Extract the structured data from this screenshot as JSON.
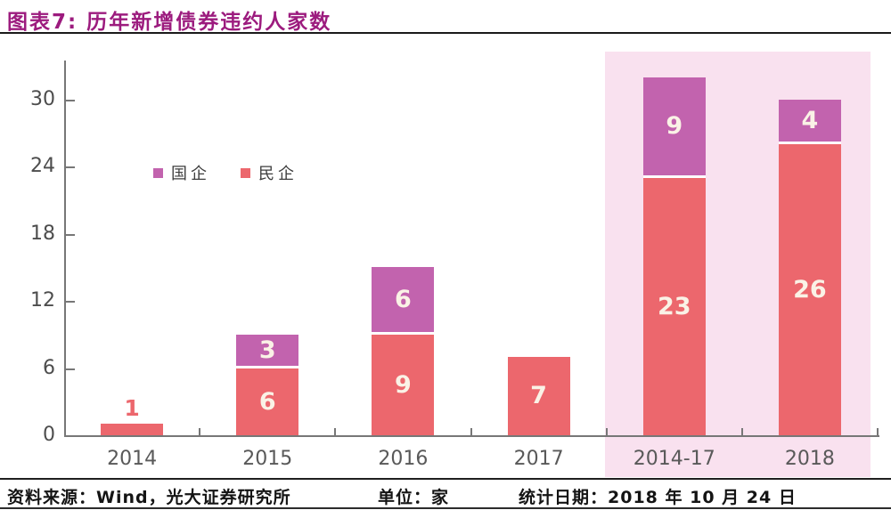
{
  "header": {
    "title": "图表7: 历年新增债券违约人家数"
  },
  "footer": {
    "source": "资料来源：Wind，光大证券研究所",
    "unit": "单位：家",
    "date": "统计日期：2018 年 10 月 24 日"
  },
  "chart_data": {
    "type": "bar",
    "stacked": true,
    "title": "图表7: 历年新增债券违约人家数",
    "unit_label": "家",
    "categories": [
      "2014",
      "2015",
      "2016",
      "2017",
      "2014-17",
      "2018"
    ],
    "series": [
      {
        "name": "民企",
        "color": "#EC676D",
        "values": [
          1,
          6,
          9,
          7,
          23,
          26
        ]
      },
      {
        "name": "国企",
        "color": "#C263AE",
        "values": [
          0,
          3,
          6,
          0,
          9,
          4
        ]
      }
    ],
    "totals": [
      1,
      9,
      15,
      7,
      32,
      30
    ],
    "legend_order": [
      "国企",
      "民企"
    ],
    "legend_position": "upper-left-inside",
    "ylim": [
      0,
      33
    ],
    "yticks": [
      0,
      6,
      12,
      18,
      24,
      30
    ],
    "grid": false,
    "highlight": {
      "categories": [
        "2014-17",
        "2018"
      ],
      "start_index": 4,
      "count": 2,
      "color": "#F9E1EF"
    },
    "colors": {
      "bar_label": "#FAF2E6",
      "axis": "#777777",
      "tick_label": "#4d4d4d",
      "title": "#9C1B7E"
    }
  }
}
